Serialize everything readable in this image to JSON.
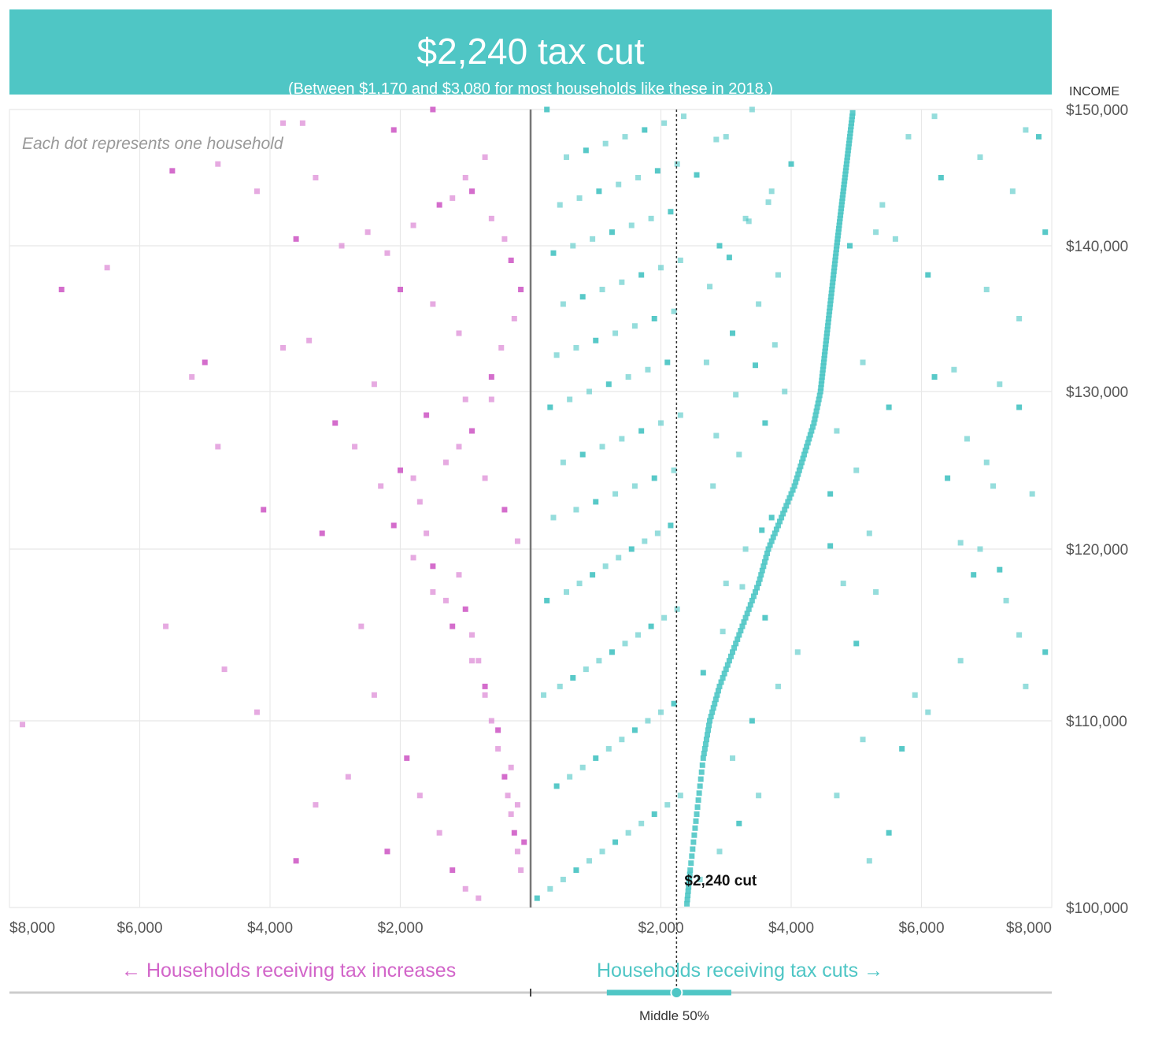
{
  "header": {
    "title": "$2,240 tax cut",
    "subtitle": "(Between $1,170 and $3,080 for most households like these in 2018.)"
  },
  "colors": {
    "banner": "#4fc6c5",
    "cut": "#4fc6c5",
    "increase": "#d265c9",
    "zero_line": "#777777",
    "grid": "#e8e8e8"
  },
  "chart_data": {
    "type": "scatter",
    "note": "Each dot represents one household",
    "y_axis": {
      "label": "INCOME",
      "range": [
        100000,
        150000
      ],
      "ticks": [
        100000,
        110000,
        120000,
        130000,
        140000,
        150000
      ],
      "tick_labels": [
        "$100,000",
        "$110,000",
        "$120,000",
        "$130,000",
        "$140,000",
        "$150,000"
      ]
    },
    "x_axis": {
      "range": [
        -8000,
        8000
      ],
      "ticks": [
        -8000,
        -6000,
        -4000,
        -2000,
        2000,
        4000,
        6000,
        8000
      ],
      "tick_labels": [
        "$8,000",
        "$6,000",
        "$4,000",
        "$2,000",
        "$2,000",
        "$4,000",
        "$6,000",
        "$8,000"
      ]
    },
    "median": {
      "value": 2240,
      "label": "$2,240 cut"
    },
    "middle_50": {
      "range": [
        1170,
        3080
      ],
      "label": "Middle 50%"
    },
    "increase_label": "← Households receiving tax increases",
    "cut_label": "Households receiving tax cuts →",
    "trend_curve": [
      [
        2400,
        100200
      ],
      [
        2450,
        102000
      ],
      [
        2550,
        105000
      ],
      [
        2650,
        108000
      ],
      [
        2750,
        110000
      ],
      [
        2900,
        112000
      ],
      [
        3100,
        114000
      ],
      [
        3300,
        116000
      ],
      [
        3500,
        118000
      ],
      [
        3650,
        120000
      ],
      [
        3850,
        122000
      ],
      [
        4050,
        124000
      ],
      [
        4200,
        126000
      ],
      [
        4350,
        128000
      ],
      [
        4450,
        130000
      ],
      [
        4500,
        132000
      ],
      [
        4550,
        134000
      ],
      [
        4600,
        136000
      ],
      [
        4650,
        138000
      ],
      [
        4700,
        140000
      ],
      [
        4750,
        142000
      ],
      [
        4800,
        144000
      ],
      [
        4850,
        146000
      ],
      [
        4900,
        148000
      ],
      [
        4950,
        150000
      ]
    ],
    "increase_points": [
      [
        -7200,
        137000
      ],
      [
        -6500,
        138500
      ],
      [
        -5200,
        131000
      ],
      [
        -5000,
        132000
      ],
      [
        -7800,
        109800
      ],
      [
        -5600,
        115500
      ],
      [
        -4100,
        122500
      ],
      [
        -3800,
        133000
      ],
      [
        -3400,
        133500
      ],
      [
        -3200,
        121000
      ],
      [
        -2600,
        115500
      ],
      [
        -2400,
        111500
      ],
      [
        -2000,
        125000
      ],
      [
        -1800,
        124500
      ],
      [
        -1600,
        121000
      ],
      [
        -1500,
        119000
      ],
      [
        -1300,
        117000
      ],
      [
        -1100,
        118500
      ],
      [
        -1000,
        116500
      ],
      [
        -900,
        115000
      ],
      [
        -800,
        113500
      ],
      [
        -700,
        112000
      ],
      [
        -600,
        110000
      ],
      [
        -500,
        108500
      ],
      [
        -400,
        107000
      ],
      [
        -350,
        106000
      ],
      [
        -300,
        105000
      ],
      [
        -250,
        104000
      ],
      [
        -200,
        103000
      ],
      [
        -150,
        102000
      ],
      [
        -1900,
        108000
      ],
      [
        -1700,
        106000
      ],
      [
        -1400,
        104000
      ],
      [
        -1200,
        102000
      ],
      [
        -1000,
        101000
      ],
      [
        -800,
        100500
      ],
      [
        -2200,
        103000
      ],
      [
        -2800,
        107000
      ],
      [
        -3300,
        105500
      ],
      [
        -3600,
        102500
      ],
      [
        -4200,
        110500
      ],
      [
        -4700,
        113000
      ],
      [
        -3000,
        128000
      ],
      [
        -2700,
        126500
      ],
      [
        -2300,
        124000
      ],
      [
        -2100,
        121500
      ],
      [
        -1800,
        119500
      ],
      [
        -1500,
        117500
      ],
      [
        -1200,
        115500
      ],
      [
        -900,
        113500
      ],
      [
        -700,
        111500
      ],
      [
        -500,
        109500
      ],
      [
        -300,
        107500
      ],
      [
        -200,
        105500
      ],
      [
        -100,
        103500
      ],
      [
        -2500,
        141000
      ],
      [
        -2900,
        140000
      ],
      [
        -3600,
        140500
      ],
      [
        -4200,
        144000
      ],
      [
        -4800,
        146000
      ],
      [
        -5500,
        145500
      ],
      [
        -3300,
        145000
      ],
      [
        -1200,
        143500
      ],
      [
        -900,
        144000
      ],
      [
        -600,
        142000
      ],
      [
        -400,
        140500
      ],
      [
        -300,
        139000
      ],
      [
        -1100,
        134000
      ],
      [
        -1500,
        136000
      ],
      [
        -2000,
        137000
      ],
      [
        -2200,
        139500
      ],
      [
        -1800,
        141500
      ],
      [
        -1400,
        143000
      ],
      [
        -1000,
        145000
      ],
      [
        -700,
        146500
      ],
      [
        -2100,
        148500
      ],
      [
        -3500,
        149000
      ],
      [
        -3800,
        149000
      ],
      [
        -1500,
        150000
      ],
      [
        -2400,
        130500
      ],
      [
        -1000,
        129500
      ],
      [
        -600,
        131000
      ],
      [
        -450,
        133000
      ],
      [
        -250,
        135000
      ],
      [
        -150,
        137000
      ],
      [
        -1700,
        123000
      ],
      [
        -1300,
        125500
      ],
      [
        -900,
        127500
      ],
      [
        -600,
        129500
      ],
      [
        -4800,
        126500
      ],
      [
        -1600,
        128500
      ],
      [
        -1100,
        126500
      ],
      [
        -700,
        124500
      ],
      [
        -400,
        122500
      ],
      [
        -200,
        120500
      ]
    ],
    "cut_points": [
      [
        100,
        100500
      ],
      [
        300,
        101000
      ],
      [
        500,
        101500
      ],
      [
        700,
        102000
      ],
      [
        900,
        102500
      ],
      [
        1100,
        103000
      ],
      [
        1300,
        103500
      ],
      [
        1500,
        104000
      ],
      [
        1700,
        104500
      ],
      [
        1900,
        105000
      ],
      [
        2100,
        105500
      ],
      [
        2300,
        106000
      ],
      [
        400,
        106500
      ],
      [
        600,
        107000
      ],
      [
        800,
        107500
      ],
      [
        1000,
        108000
      ],
      [
        1200,
        108500
      ],
      [
        1400,
        109000
      ],
      [
        1600,
        109500
      ],
      [
        1800,
        110000
      ],
      [
        2000,
        110500
      ],
      [
        2200,
        111000
      ],
      [
        200,
        111500
      ],
      [
        450,
        112000
      ],
      [
        650,
        112500
      ],
      [
        850,
        113000
      ],
      [
        1050,
        113500
      ],
      [
        1250,
        114000
      ],
      [
        1450,
        114500
      ],
      [
        1650,
        115000
      ],
      [
        1850,
        115500
      ],
      [
        2050,
        116000
      ],
      [
        2250,
        116500
      ],
      [
        250,
        117000
      ],
      [
        550,
        117500
      ],
      [
        750,
        118000
      ],
      [
        950,
        118500
      ],
      [
        1150,
        119000
      ],
      [
        1350,
        119500
      ],
      [
        1550,
        120000
      ],
      [
        1750,
        120500
      ],
      [
        1950,
        121000
      ],
      [
        2150,
        121500
      ],
      [
        350,
        122000
      ],
      [
        700,
        122500
      ],
      [
        1000,
        123000
      ],
      [
        1300,
        123500
      ],
      [
        1600,
        124000
      ],
      [
        1900,
        124500
      ],
      [
        2200,
        125000
      ],
      [
        500,
        125500
      ],
      [
        800,
        126000
      ],
      [
        1100,
        126500
      ],
      [
        1400,
        127000
      ],
      [
        1700,
        127500
      ],
      [
        2000,
        128000
      ],
      [
        2300,
        128500
      ],
      [
        300,
        129000
      ],
      [
        600,
        129500
      ],
      [
        900,
        130000
      ],
      [
        1200,
        130500
      ],
      [
        1500,
        131000
      ],
      [
        1800,
        131500
      ],
      [
        2100,
        132000
      ],
      [
        400,
        132500
      ],
      [
        700,
        133000
      ],
      [
        1000,
        133500
      ],
      [
        1300,
        134000
      ],
      [
        1600,
        134500
      ],
      [
        1900,
        135000
      ],
      [
        2200,
        135500
      ],
      [
        500,
        136000
      ],
      [
        800,
        136500
      ],
      [
        1100,
        137000
      ],
      [
        1400,
        137500
      ],
      [
        1700,
        138000
      ],
      [
        2000,
        138500
      ],
      [
        2300,
        139000
      ],
      [
        350,
        139500
      ],
      [
        650,
        140000
      ],
      [
        950,
        140500
      ],
      [
        1250,
        141000
      ],
      [
        1550,
        141500
      ],
      [
        1850,
        142000
      ],
      [
        2150,
        142500
      ],
      [
        450,
        143000
      ],
      [
        750,
        143500
      ],
      [
        1050,
        144000
      ],
      [
        1350,
        144500
      ],
      [
        1650,
        145000
      ],
      [
        1950,
        145500
      ],
      [
        2250,
        146000
      ],
      [
        550,
        146500
      ],
      [
        850,
        147000
      ],
      [
        1150,
        147500
      ],
      [
        1450,
        148000
      ],
      [
        1750,
        148500
      ],
      [
        2050,
        149000
      ],
      [
        2350,
        149500
      ],
      [
        250,
        150000
      ],
      [
        2600,
        101500
      ],
      [
        2900,
        103000
      ],
      [
        3200,
        104500
      ],
      [
        3500,
        106000
      ],
      [
        3100,
        108000
      ],
      [
        3400,
        110000
      ],
      [
        3800,
        112000
      ],
      [
        4100,
        114000
      ],
      [
        3600,
        116000
      ],
      [
        3000,
        118000
      ],
      [
        3300,
        120000
      ],
      [
        3700,
        122000
      ],
      [
        2800,
        124000
      ],
      [
        3200,
        126000
      ],
      [
        3600,
        128000
      ],
      [
        3900,
        130000
      ],
      [
        2700,
        132000
      ],
      [
        3100,
        134000
      ],
      [
        3500,
        136000
      ],
      [
        3800,
        138000
      ],
      [
        2900,
        140000
      ],
      [
        3300,
        142000
      ],
      [
        3700,
        144000
      ],
      [
        4000,
        146000
      ],
      [
        3000,
        148000
      ],
      [
        3400,
        150000
      ],
      [
        2650,
        112800
      ],
      [
        2950,
        115200
      ],
      [
        3250,
        117800
      ],
      [
        3550,
        121200
      ],
      [
        2850,
        127200
      ],
      [
        3150,
        129800
      ],
      [
        3450,
        131800
      ],
      [
        3750,
        133200
      ],
      [
        2750,
        137200
      ],
      [
        3050,
        139200
      ],
      [
        3350,
        141800
      ],
      [
        3650,
        143200
      ],
      [
        2550,
        145200
      ],
      [
        2850,
        147800
      ],
      [
        5200,
        102500
      ],
      [
        5500,
        104000
      ],
      [
        4700,
        106000
      ],
      [
        5100,
        109000
      ],
      [
        5700,
        108500
      ],
      [
        6100,
        110500
      ],
      [
        5900,
        111500
      ],
      [
        5000,
        114500
      ],
      [
        4800,
        118000
      ],
      [
        5200,
        121000
      ],
      [
        4600,
        123500
      ],
      [
        5000,
        125000
      ],
      [
        4700,
        127500
      ],
      [
        5500,
        129000
      ],
      [
        6700,
        127000
      ],
      [
        7000,
        125500
      ],
      [
        6400,
        124500
      ],
      [
        7100,
        124000
      ],
      [
        7700,
        123500
      ],
      [
        6800,
        118500
      ],
      [
        7300,
        117000
      ],
      [
        7500,
        115000
      ],
      [
        7900,
        114000
      ],
      [
        6600,
        113500
      ],
      [
        7600,
        112000
      ],
      [
        6200,
        131000
      ],
      [
        6500,
        131500
      ],
      [
        7200,
        130500
      ],
      [
        7500,
        129000
      ],
      [
        7000,
        137000
      ],
      [
        7500,
        135000
      ],
      [
        6100,
        138000
      ],
      [
        5600,
        140500
      ],
      [
        5300,
        141000
      ],
      [
        6300,
        145000
      ],
      [
        6900,
        146500
      ],
      [
        7400,
        144000
      ],
      [
        7900,
        141000
      ],
      [
        6200,
        149500
      ],
      [
        7600,
        148500
      ],
      [
        7800,
        148000
      ],
      [
        5800,
        148000
      ],
      [
        5400,
        143000
      ],
      [
        4900,
        140000
      ],
      [
        5100,
        132000
      ],
      [
        5300,
        117500
      ],
      [
        7200,
        118800
      ],
      [
        6900,
        120000
      ],
      [
        6600,
        120400
      ],
      [
        4600,
        120200
      ]
    ]
  }
}
